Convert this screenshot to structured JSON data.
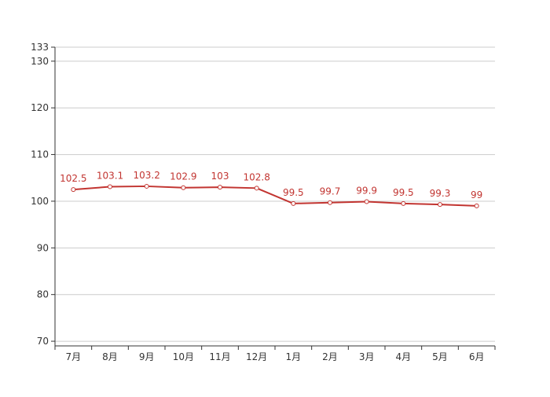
{
  "chart_data": {
    "type": "line",
    "categories": [
      "7月",
      "8月",
      "9月",
      "10月",
      "11月",
      "12月",
      "1月",
      "2月",
      "3月",
      "4月",
      "5月",
      "6月"
    ],
    "series": [
      {
        "values": [
          102.5,
          103.1,
          103.2,
          102.9,
          103,
          102.8,
          99.5,
          99.7,
          99.9,
          99.5,
          99.3,
          99
        ],
        "data_labels": [
          "102.5",
          "103.1",
          "103.2",
          "102.9",
          "103",
          "102.8",
          "99.5",
          "99.7",
          "99.9",
          "99.5",
          "99.3",
          "99"
        ]
      }
    ],
    "title": "",
    "xlabel": "",
    "ylabel": "",
    "ylim": [
      69,
      133
    ],
    "y_ticks": [
      70,
      80,
      90,
      100,
      110,
      120,
      130,
      133
    ],
    "y_tick_labels": [
      "70",
      "80",
      "90",
      "100",
      "110",
      "120",
      "130",
      "133"
    ],
    "grid": true,
    "legend": "none",
    "colors": {
      "series": "#c23531",
      "axis": "#333333",
      "grid": "#cccccc",
      "marker_fill": "#ffffff"
    }
  }
}
